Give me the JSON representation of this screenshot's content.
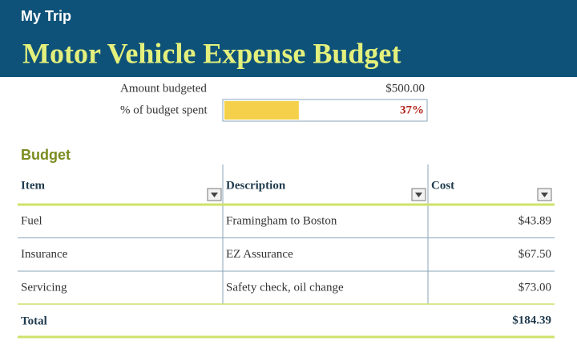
{
  "header": {
    "subtitle": "My Trip",
    "title": "Motor Vehicle Expense Budget"
  },
  "summary": {
    "amount_label": "Amount budgeted",
    "amount": "$500.00",
    "percent_label": "% of budget spent",
    "percent_spent": {
      "value": 37,
      "label": "37%"
    }
  },
  "budget": {
    "title": "Budget",
    "columns": [
      "Item",
      "Description",
      "Cost"
    ],
    "rows": [
      [
        "Fuel",
        "Framingham to Boston",
        "$43.89"
      ],
      [
        "Insurance",
        "EZ Assurance",
        "$67.50"
      ],
      [
        "Servicing",
        "Safety check, oil change",
        "$73.00"
      ]
    ],
    "total": {
      "label": "Total",
      "cost": "$184.39"
    }
  }
}
